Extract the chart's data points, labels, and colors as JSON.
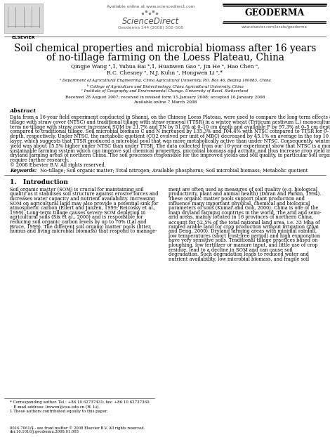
{
  "title_line1": "Soil chemical properties and microbial biomass after 16 years",
  "title_line2": "of no-tillage farming on the Loess Plateau, China",
  "authors_line1": "Qingjie Wang ᵃ,1, Yuhua Bai ᵇ,1, Huanwen Gao ᵃ, Jin He ᵃ, Hao Chen ᵃ,",
  "authors_line2": "R.C. Chesney ᵃ, N.J. Kuhn ᶜ, Hongwen Li ᵃ,*",
  "journal_name": "GEODERMA",
  "journal_info": "Geoderma 144 (2008) 502–508",
  "sciencedirect_text": "ScienceDirect",
  "available_online": "Available online at www.sciencedirect.com",
  "journal_url": "www.elsevier.com/locate/geoderma",
  "elsevier_text": "ELSEVIER",
  "affil_a": "ᵃ Department of Agricultural Engineering, China Agricultural University, P.O. Box 46, Beijing 100083, China",
  "affil_b": "ᵇ College of Agriculture and Biotechnology, China Agricultural University, China",
  "affil_c": "ᶜ Institute of Geography and Environmental Change, University of Basel, Switzerland",
  "received": "Received 28 August 2007; received in revised form 15 January 2008; accepted 16 January 2008",
  "available": "Available online 7 March 2008",
  "abstract_title": "Abstract",
  "abstract_body": [
    "Data from a 16-year field experiment conducted in Shanxi, on the Chinese Loess Plateau, were used to compare the long-term effects of no-",
    "tillage with straw cover (NTSC) and traditional tillage with straw removal (TTSR) in a winter wheat (Triticum aestivum L.) monoculture. Long-",
    "term no-tillage with straw cover increased SOM by 21.7% and TN by 51.0% at 0–10 cm depth and available P by 97.3% at 0–5 cm depth",
    "compared to traditional tillage. Soil microbial biomass C and N increased by 135.3% and 104.4% with NTSC compared to TTSR for 0–10 cm",
    "depth, respectively. Under NTSC, the metabolic quotient (CO2 evolved per unit of MBC) decreased by 45.1% on average in the top 10 cm soil",
    "layer, which suggests that TTSR produced a microbial pool that was more metabolically active than under NTSC. Consequently, winter wheat",
    "yield was about 15.5% higher under NTSC than under TTSR. The data collected from our 16-year experiment show that NTSC is a more",
    "sustainable farming system which can improve soil chemical properties, microbial biomass and activity, and thus increase crop yield in the rainfed",
    "dryland farming areas of northern China. The soil processes responsible for the improved yields and soil quality, in particular soil organic matter,",
    "require further research.",
    "© 2008 Elsevier B.V. All rights reserved."
  ],
  "keywords_label": "Keywords:",
  "keywords_text": "No-tillage; Soil organic matter; Total nitrogen; Available phosphorus; Soil microbial biomass; Metabolic quotient",
  "section1_title": "1.   Introduction",
  "intro_left": [
    "Soil organic matter (SOM) is crucial for maintaining soil",
    "quality as it stabilises soil structure against erosive forces and",
    "increases water capacity and nutrient availability. Increasing",
    "SOM on agricultural land may also provide a potential sink for",
    "atmospheric carbon (Ellert and Janzen, 1999; Reicosky et al.,",
    "1999). Long-term tillage causes severe SOM depletion in",
    "agricultural soils (Six et al., 2000) and is responsible for",
    "reducing soil organic carbon levels by up to 70% (Lal and",
    "Bruce, 1999). The different soil organic matter pools (litter,",
    "humus and living microbial biomass) that respond to manage-"
  ],
  "intro_right": [
    "ment are often used as measures of soil quality (e.g. biological",
    "productivity, plant and animal health) (Doran and Parkin, 1994).",
    "These organic matter pools support plant production and",
    "influence many important physical, chemical and biological",
    "parameters of soils (Kumar and Goh, 2000). China is one of the",
    "main dryland farming countries in the world. The arid and semi-",
    "arid areas, mainly located in 16 provinces of northern China,",
    "account for 52.5% of the total national land area, i.e. 33 Mha of",
    "rainfed arable land for crop production without irrigation (Zhai",
    "and Deng, 2000). Dryland farming areas with minimal rainfall,",
    "low temperatures (short frost-free period) and high evaporation",
    "have very sensitive soils. Traditional tillage practices based on",
    "ploughing, low fertilizer or manure input, and little use of crop",
    "residue, lead to a decline in SOM and can cause soil",
    "degradation. Such degradation leads to reduced water and",
    "nutrient availability, low microbial biomass, and fragile soil"
  ],
  "footnote1": "* Corresponding author. Tel.: +86 10 62737431; fax: +86 10 62737360.",
  "footnote2": "   E-mail address: liwwen@cau.edu.cn (H. Li).",
  "footnote3": "1 These authors contributed equally to this paper.",
  "bottom_line1": "0016-7061/$ - see front matter © 2008 Elsevier B.V. All rights reserved.",
  "bottom_line2": "doi:10.1016/j.geoderma.2008.01.003",
  "bg_color": "#ffffff",
  "text_color": "#000000"
}
